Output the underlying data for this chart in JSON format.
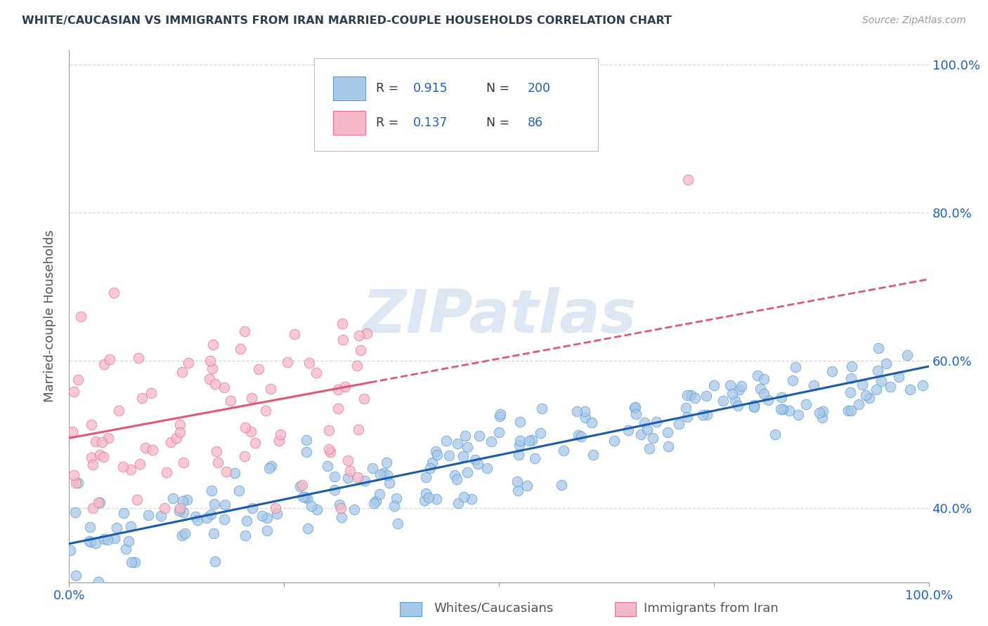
{
  "title": "WHITE/CAUCASIAN VS IMMIGRANTS FROM IRAN MARRIED-COUPLE HOUSEHOLDS CORRELATION CHART",
  "source": "Source: ZipAtlas.com",
  "ylabel": "Married-couple Households",
  "R_white": 0.915,
  "N_white": 200,
  "R_iran": 0.137,
  "N_iran": 86,
  "blue_color": "#a8c8e8",
  "blue_edge": "#5a9fd4",
  "pink_color": "#f5b8c8",
  "pink_edge": "#e87090",
  "blue_line_color": "#1a5ca8",
  "pink_line_color": "#e05878",
  "axis_label_color": "#2060c0",
  "title_color": "#2c3e50",
  "watermark_color": "#c5d8ec",
  "watermark": "ZIPatlas",
  "xmin": 0.0,
  "xmax": 1.0,
  "ymin": 0.3,
  "ymax": 1.02,
  "yticks": [
    0.4,
    0.6,
    0.8,
    1.0
  ],
  "ytick_labels": [
    "40.0%",
    "60.0%",
    "80.0%",
    "100.0%"
  ],
  "blue_line_x0": 0.0,
  "blue_line_y0": 0.352,
  "blue_line_x1": 1.0,
  "blue_line_y1": 0.592,
  "pink_line_x0": 0.0,
  "pink_line_y0": 0.495,
  "pink_line_x1": 1.0,
  "pink_line_y1": 0.71,
  "grid_color": "#cccccc",
  "background_color": "#ffffff",
  "legend_label1": "Whites/Caucasians",
  "legend_label2": "Immigrants from Iran"
}
